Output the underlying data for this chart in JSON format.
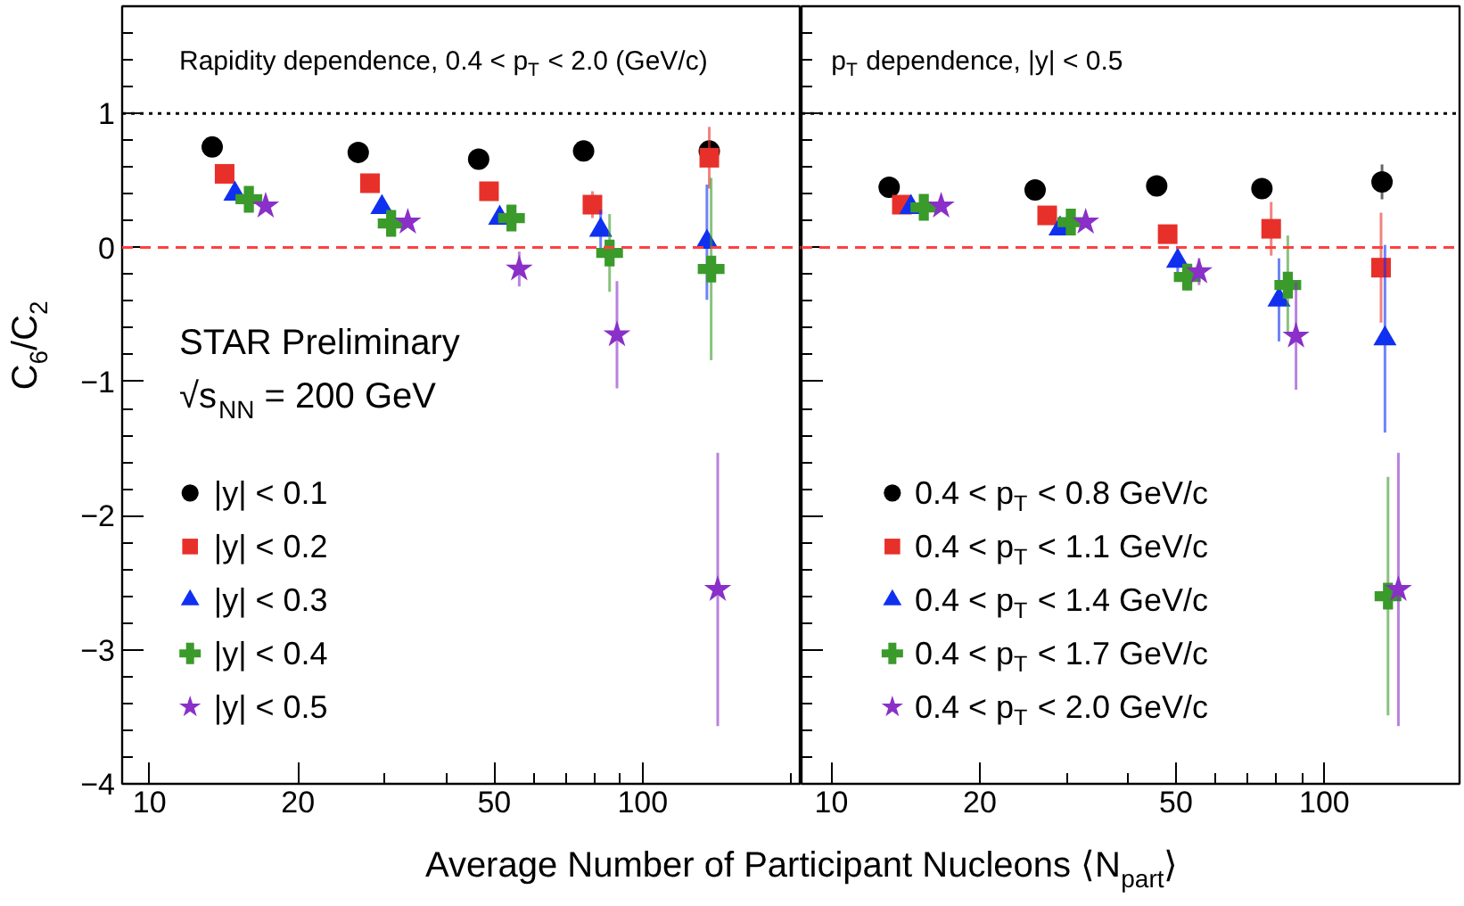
{
  "chart_data": [
    {
      "type": "scatter",
      "title": "Rapidity dependence, 0.4 < p$_{T}$ < 2.0 (GeV/c)",
      "xlabel": "Average Number of Participant Nucleons ⟨N$_{part}$⟩",
      "ylabel": "C$_{6}$/C$_{2}$",
      "annotations": [
        "STAR Preliminary",
        "√s$_{NN}$ = 200 GeV"
      ],
      "log": "x",
      "xlim": [
        8.8,
        210
      ],
      "ylim": [
        -4,
        1.8
      ],
      "xticks": [
        10,
        20,
        {
          "value": 30,
          "label": null
        },
        {
          "value": 40,
          "label": null
        },
        50,
        {
          "value": 60,
          "label": null
        },
        {
          "value": 70,
          "label": null
        },
        {
          "value": 80,
          "label": null
        },
        {
          "value": 90,
          "label": null
        },
        100,
        {
          "value": 200,
          "label": null
        }
      ],
      "yticks": [
        -4,
        {
          "value": -3.8,
          "label": null
        },
        {
          "value": -3.6,
          "label": null
        },
        {
          "value": -3.4,
          "label": null
        },
        {
          "value": -3.2,
          "label": null
        },
        -3,
        {
          "value": -2.8,
          "label": null
        },
        {
          "value": -2.6,
          "label": null
        },
        {
          "value": -2.4,
          "label": null
        },
        {
          "value": -2.2,
          "label": null
        },
        -2,
        {
          "value": -1.8,
          "label": null
        },
        {
          "value": -1.6,
          "label": null
        },
        {
          "value": -1.4,
          "label": null
        },
        {
          "value": -1.2,
          "label": null
        },
        -1,
        {
          "value": -0.8,
          "label": null
        },
        {
          "value": -0.6,
          "label": null
        },
        {
          "value": -0.4,
          "label": null
        },
        {
          "value": -0.2,
          "label": null
        },
        0,
        {
          "value": 0.2,
          "label": null
        },
        {
          "value": 0.4,
          "label": null
        },
        {
          "value": 0.6,
          "label": null
        },
        {
          "value": 0.8,
          "label": null
        },
        1,
        {
          "value": 1.2,
          "label": null
        },
        {
          "value": 1.4,
          "label": null
        },
        {
          "value": 1.6,
          "label": null
        }
      ],
      "legend": "bottom left",
      "ref_lines": [
        {
          "axis": "y",
          "value": 1,
          "color": "#000000",
          "line_style": "dotted"
        },
        {
          "axis": "y",
          "value": 0,
          "color": "#ff4040",
          "line_style": "dashed"
        }
      ],
      "series": [
        {
          "name": "|y| < 0.1",
          "color": "#000000",
          "marker": "circle",
          "x": [
            13.4,
            26.5,
            46.5,
            75.9,
            136.5
          ],
          "values": [
            0.75,
            0.71,
            0.66,
            0.72,
            0.72
          ],
          "errors": [
            null,
            null,
            null,
            null,
            0.05
          ]
        },
        {
          "name": "|y| < 0.2",
          "color": "#e8302a",
          "marker": "square",
          "x": [
            14.2,
            28.0,
            48.8,
            79.1,
            136.5
          ],
          "values": [
            0.55,
            0.48,
            0.42,
            0.32,
            0.67
          ],
          "errors": [
            null,
            null,
            null,
            0.1,
            0.23
          ]
        },
        {
          "name": "|y| < 0.3",
          "color": "#1030f0",
          "marker": "triangle",
          "x": [
            14.9,
            29.6,
            51.3,
            82.2,
            135
          ],
          "values": [
            0.4,
            0.3,
            0.22,
            0.13,
            0.04
          ],
          "errors": [
            null,
            null,
            null,
            0.15,
            0.43
          ]
        },
        {
          "name": "|y| < 0.4",
          "color": "#3a9a2a",
          "marker": "cross",
          "x": [
            15.9,
            30.9,
            54.2,
            85.7,
            137.7
          ],
          "values": [
            0.36,
            0.18,
            0.22,
            -0.04,
            -0.16
          ],
          "errors": [
            null,
            null,
            0.05,
            0.29,
            0.68
          ]
        },
        {
          "name": "|y| < 0.5",
          "color": "#8a2fc8",
          "marker": "star",
          "x": [
            17.2,
            33.4,
            56.2,
            88.7,
            142
          ],
          "values": [
            0.31,
            0.19,
            -0.16,
            -0.65,
            -2.55
          ],
          "errors": [
            null,
            null,
            0.13,
            0.4,
            1.02
          ]
        }
      ]
    },
    {
      "type": "scatter",
      "title": "p$_{T}$ dependence, |y| < 0.5",
      "log": "x",
      "xlim": [
        8.7,
        188
      ],
      "ylim": [
        -4,
        1.8
      ],
      "tick_labels": "x",
      "xticks": [
        10,
        20,
        {
          "value": 30,
          "label": null
        },
        {
          "value": 40,
          "label": null
        },
        50,
        {
          "value": 60,
          "label": null
        },
        {
          "value": 70,
          "label": null
        },
        {
          "value": 80,
          "label": null
        },
        {
          "value": 90,
          "label": null
        },
        100
      ],
      "yticks": [
        -4,
        {
          "value": -3.8,
          "label": null
        },
        {
          "value": -3.6,
          "label": null
        },
        {
          "value": -3.4,
          "label": null
        },
        {
          "value": -3.2,
          "label": null
        },
        -3,
        {
          "value": -2.8,
          "label": null
        },
        {
          "value": -2.6,
          "label": null
        },
        {
          "value": -2.4,
          "label": null
        },
        {
          "value": -2.2,
          "label": null
        },
        -2,
        {
          "value": -1.8,
          "label": null
        },
        {
          "value": -1.6,
          "label": null
        },
        {
          "value": -1.4,
          "label": null
        },
        {
          "value": -1.2,
          "label": null
        },
        -1,
        {
          "value": -0.8,
          "label": null
        },
        {
          "value": -0.6,
          "label": null
        },
        {
          "value": -0.4,
          "label": null
        },
        {
          "value": -0.2,
          "label": null
        },
        0,
        {
          "value": 0.2,
          "label": null
        },
        {
          "value": 0.4,
          "label": null
        },
        {
          "value": 0.6,
          "label": null
        },
        {
          "value": 0.8,
          "label": null
        },
        1,
        {
          "value": 1.2,
          "label": null
        },
        {
          "value": 1.4,
          "label": null
        },
        {
          "value": 1.6,
          "label": null
        }
      ],
      "legend": "bottom left",
      "ref_lines": [
        {
          "axis": "y",
          "value": 1,
          "color": "#000000",
          "line_style": "dotted"
        },
        {
          "axis": "y",
          "value": 0,
          "color": "#ff4040",
          "line_style": "dashed"
        }
      ],
      "series": [
        {
          "name": "0.4 < p$_{T}$ < 0.8 GeV/c",
          "color": "#000000",
          "marker": "circle",
          "x": [
            13.1,
            25.9,
            45.7,
            74.7,
            130.9
          ],
          "values": [
            0.45,
            0.43,
            0.46,
            0.44,
            0.49
          ],
          "errors": [
            null,
            null,
            null,
            0.05,
            0.13
          ]
        },
        {
          "name": "0.4 < p$_{T}$ < 1.1 GeV/c",
          "color": "#e8302a",
          "marker": "square",
          "x": [
            13.9,
            27.4,
            48.1,
            78.0,
            130.3
          ],
          "values": [
            0.32,
            0.24,
            0.1,
            0.14,
            -0.15
          ],
          "errors": [
            null,
            null,
            0.05,
            0.2,
            0.41
          ]
        },
        {
          "name": "0.4 < p$_{T}$ < 1.4 GeV/c",
          "color": "#1030f0",
          "marker": "triangle",
          "x": [
            14.5,
            29.1,
            50.4,
            80.9,
            132.7
          ],
          "values": [
            0.3,
            0.14,
            -0.1,
            -0.39,
            -0.68
          ],
          "errors": [
            null,
            null,
            0.1,
            0.31,
            0.7
          ]
        },
        {
          "name": "0.4 < p$_{T}$ < 1.7 GeV/c",
          "color": "#3a9a2a",
          "marker": "cross",
          "x": [
            15.4,
            30.6,
            52.7,
            84.3,
            134.6
          ],
          "values": [
            0.3,
            0.19,
            -0.22,
            -0.28,
            -2.6
          ],
          "errors": [
            null,
            null,
            0.1,
            0.37,
            0.89
          ]
        },
        {
          "name": "0.4 < p$_{T}$ < 2.0 GeV/c",
          "color": "#8a2fc8",
          "marker": "star",
          "x": [
            16.7,
            32.8,
            55.7,
            87.6,
            141.3
          ],
          "values": [
            0.31,
            0.19,
            -0.18,
            -0.66,
            -2.55
          ],
          "errors": [
            null,
            null,
            0.1,
            0.4,
            1.02
          ]
        }
      ]
    }
  ]
}
